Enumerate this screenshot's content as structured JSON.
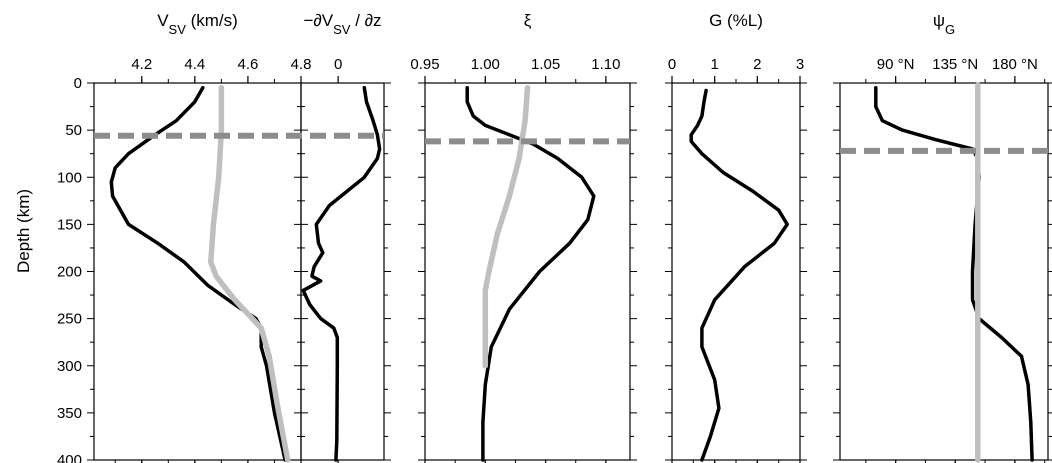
{
  "chart_data": [
    {
      "type": "line",
      "title_main": "V",
      "title_sub": "SV",
      "title_rest": " (km/s)",
      "ylabel": "Depth (km)",
      "ylim": [
        0,
        400
      ],
      "yticks": [
        "0",
        "50",
        "100",
        "150",
        "200",
        "250",
        "300",
        "350",
        "400"
      ],
      "xlim": [
        4.02,
        4.8
      ],
      "xticks": [
        {
          "v": 4.2,
          "label": "4.2"
        },
        {
          "v": 4.4,
          "label": "4.4"
        },
        {
          "v": 4.6,
          "label": "4.6"
        },
        {
          "v": 4.8,
          "label": "4.8"
        }
      ],
      "colors": {
        "black": "#000000",
        "gray": "#bfbfbf",
        "dash": "#8c8c8c"
      },
      "dashed_depth": 56,
      "series": [
        {
          "color": "black",
          "points": [
            [
              4.43,
              5
            ],
            [
              4.4,
              20
            ],
            [
              4.33,
              40
            ],
            [
              4.25,
              55
            ],
            [
              4.15,
              75
            ],
            [
              4.1,
              90
            ],
            [
              4.085,
              105
            ],
            [
              4.09,
              120
            ],
            [
              4.15,
              150
            ],
            [
              4.26,
              170
            ],
            [
              4.36,
              190
            ],
            [
              4.45,
              215
            ],
            [
              4.55,
              235
            ],
            [
              4.63,
              250
            ],
            [
              4.65,
              260
            ],
            [
              4.65,
              280
            ],
            [
              4.67,
              300
            ],
            [
              4.7,
              350
            ],
            [
              4.74,
              400
            ]
          ]
        },
        {
          "color": "gray",
          "points": [
            [
              4.5,
              5
            ],
            [
              4.5,
              50
            ],
            [
              4.49,
              100
            ],
            [
              4.47,
              150
            ],
            [
              4.46,
              190
            ],
            [
              4.48,
              205
            ],
            [
              4.55,
              230
            ],
            [
              4.65,
              260
            ],
            [
              4.68,
              290
            ],
            [
              4.71,
              340
            ],
            [
              4.75,
              400
            ]
          ]
        }
      ]
    },
    {
      "type": "line",
      "title_main": "−∂V",
      "title_sub": "SV",
      "title_rest": " / ∂z",
      "ylim": [
        0,
        400
      ],
      "xlim": [
        -0.085,
        0.105
      ],
      "xticks": [
        {
          "v": 0,
          "label": "0"
        }
      ],
      "colors": {
        "black": "#000000",
        "dash": "#8c8c8c"
      },
      "dashed_depth": 56,
      "series": [
        {
          "color": "black",
          "points": [
            [
              0.06,
              5
            ],
            [
              0.065,
              20
            ],
            [
              0.08,
              40
            ],
            [
              0.09,
              55
            ],
            [
              0.095,
              70
            ],
            [
              0.09,
              80
            ],
            [
              0.06,
              100
            ],
            [
              0.02,
              115
            ],
            [
              -0.02,
              130
            ],
            [
              -0.05,
              150
            ],
            [
              -0.045,
              170
            ],
            [
              -0.035,
              180
            ],
            [
              -0.055,
              195
            ],
            [
              -0.06,
              205
            ],
            [
              -0.04,
              210
            ],
            [
              -0.08,
              220
            ],
            [
              -0.065,
              235
            ],
            [
              -0.04,
              250
            ],
            [
              -0.01,
              260
            ],
            [
              -0.002,
              270
            ],
            [
              -0.002,
              300
            ],
            [
              -0.003,
              380
            ],
            [
              -0.005,
              400
            ]
          ]
        }
      ]
    },
    {
      "type": "line",
      "title_main": "ξ",
      "ylim": [
        0,
        400
      ],
      "xlim": [
        0.95,
        1.12
      ],
      "xticks": [
        {
          "v": 0.95,
          "label": "0.95"
        },
        {
          "v": 1.0,
          "label": "1.00"
        },
        {
          "v": 1.05,
          "label": "1.05"
        },
        {
          "v": 1.1,
          "label": "1.10"
        }
      ],
      "colors": {
        "black": "#000000",
        "gray": "#bfbfbf",
        "dash": "#8c8c8c"
      },
      "dashed_depth": 62,
      "series": [
        {
          "color": "black",
          "points": [
            [
              0.985,
              5
            ],
            [
              0.985,
              20
            ],
            [
              0.99,
              35
            ],
            [
              1.0,
              45
            ],
            [
              1.02,
              55
            ],
            [
              1.04,
              65
            ],
            [
              1.06,
              80
            ],
            [
              1.08,
              100
            ],
            [
              1.09,
              120
            ],
            [
              1.085,
              145
            ],
            [
              1.07,
              170
            ],
            [
              1.045,
              200
            ],
            [
              1.02,
              240
            ],
            [
              1.005,
              280
            ],
            [
              1.0,
              320
            ],
            [
              0.998,
              360
            ],
            [
              0.998,
              400
            ]
          ]
        },
        {
          "color": "gray",
          "points": [
            [
              1.035,
              5
            ],
            [
              1.033,
              40
            ],
            [
              1.028,
              80
            ],
            [
              1.02,
              120
            ],
            [
              1.01,
              160
            ],
            [
              1.003,
              200
            ],
            [
              1.0,
              220
            ],
            [
              1.0,
              260
            ],
            [
              1.0,
              300
            ]
          ]
        }
      ]
    },
    {
      "type": "line",
      "title_main": "G (%L)",
      "ylim": [
        0,
        400
      ],
      "xlim": [
        0,
        3
      ],
      "xticks": [
        {
          "v": 0,
          "label": "0"
        },
        {
          "v": 1,
          "label": "1"
        },
        {
          "v": 2,
          "label": "2"
        },
        {
          "v": 3,
          "label": "3"
        }
      ],
      "colors": {
        "black": "#000000",
        "dash": "#8c8c8c"
      },
      "series": [
        {
          "color": "black",
          "points": [
            [
              0.8,
              8
            ],
            [
              0.75,
              20
            ],
            [
              0.7,
              35
            ],
            [
              0.6,
              45
            ],
            [
              0.45,
              55
            ],
            [
              0.45,
              62
            ],
            [
              0.7,
              75
            ],
            [
              1.2,
              95
            ],
            [
              1.9,
              115
            ],
            [
              2.5,
              135
            ],
            [
              2.7,
              150
            ],
            [
              2.4,
              170
            ],
            [
              1.7,
              195
            ],
            [
              1.0,
              230
            ],
            [
              0.7,
              260
            ],
            [
              0.7,
              280
            ],
            [
              1.0,
              315
            ],
            [
              1.1,
              345
            ],
            [
              0.9,
              375
            ],
            [
              0.7,
              400
            ]
          ]
        }
      ]
    },
    {
      "type": "line",
      "title_main": "ψ",
      "title_sub": "G",
      "ylim": [
        0,
        400
      ],
      "xlim": [
        48,
        205
      ],
      "xticks": [
        {
          "v": 90,
          "label": "90 °N"
        },
        {
          "v": 135,
          "label": "135 °N"
        },
        {
          "v": 180,
          "label": "180 °N"
        }
      ],
      "colors": {
        "black": "#000000",
        "gray": "#bfbfbf",
        "dash": "#8c8c8c"
      },
      "dashed_depth": 72,
      "series": [
        {
          "color": "black",
          "points": [
            [
              75,
              5
            ],
            [
              75,
              25
            ],
            [
              80,
              40
            ],
            [
              95,
              50
            ],
            [
              120,
              60
            ],
            [
              148,
              70
            ],
            [
              152,
              80
            ],
            [
              153,
              100
            ],
            [
              150,
              150
            ],
            [
              148,
              200
            ],
            [
              148,
              230
            ],
            [
              153,
              250
            ],
            [
              170,
              270
            ],
            [
              185,
              290
            ],
            [
              190,
              320
            ],
            [
              192,
              360
            ],
            [
              193,
              400
            ]
          ]
        },
        {
          "color": "gray",
          "points": [
            [
              152,
              2
            ],
            [
              152,
              400
            ]
          ]
        }
      ]
    }
  ]
}
